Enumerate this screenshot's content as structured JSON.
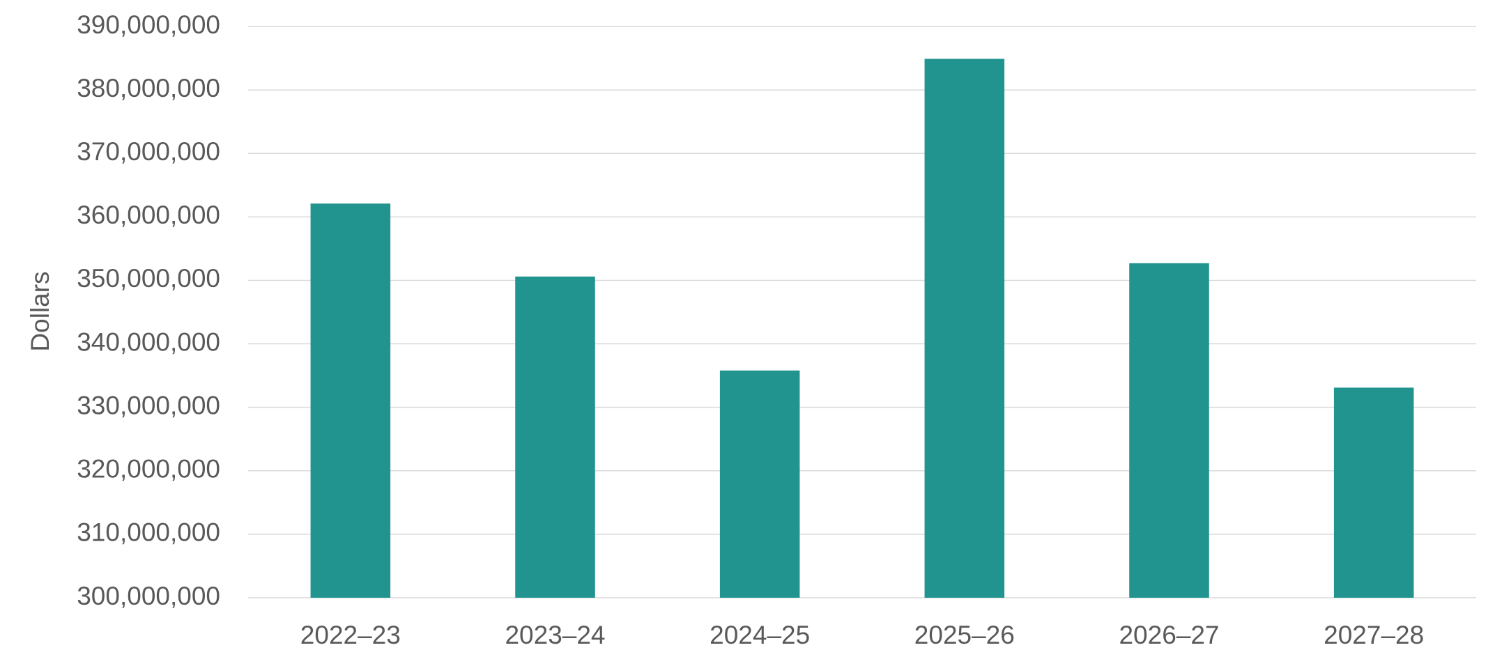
{
  "chart_data": {
    "type": "bar",
    "y_label": "Dollars",
    "categories": [
      "2022–23",
      "2023–24",
      "2024–25",
      "2025–26",
      "2026–27",
      "2027–28"
    ],
    "values": [
      362100000,
      350600000,
      335800000,
      384900000,
      352700000,
      333100000
    ],
    "color": "#21948f",
    "ylim": [
      300000000,
      390000000
    ],
    "yticks": [
      {
        "value": 300000000,
        "label": "300,000,000"
      },
      {
        "value": 310000000,
        "label": "310,000,000"
      },
      {
        "value": 320000000,
        "label": "320,000,000"
      },
      {
        "value": 330000000,
        "label": "330,000,000"
      },
      {
        "value": 340000000,
        "label": "340,000,000"
      },
      {
        "value": 350000000,
        "label": "350,000,000"
      },
      {
        "value": 360000000,
        "label": "360,000,000"
      },
      {
        "value": 370000000,
        "label": "370,000,000"
      },
      {
        "value": 380000000,
        "label": "380,000,000"
      },
      {
        "value": 390000000,
        "label": "390,000,000"
      }
    ],
    "grid": true
  }
}
